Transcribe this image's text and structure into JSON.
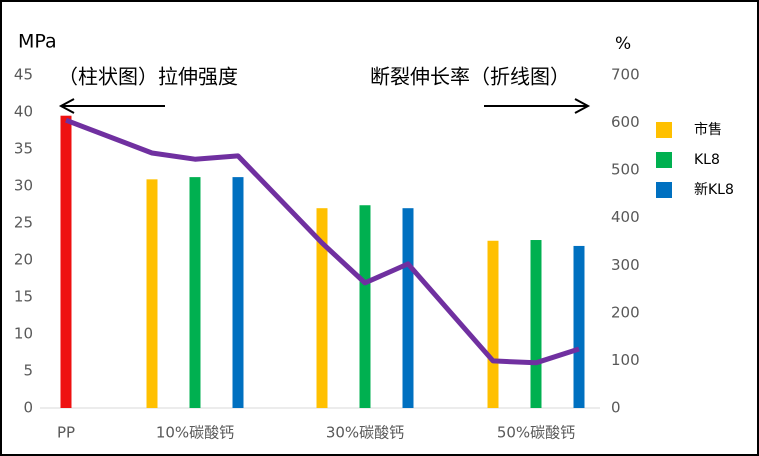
{
  "chart_data": {
    "type": "bar",
    "y_label": "MPa",
    "y2_label": "%",
    "annotations": [
      "（柱状图）拉伸强度",
      "断裂伸长率（折线图）"
    ],
    "categories": [
      "PP",
      "10%碳酸钙",
      "30%碳酸钙",
      "50%碳酸钙"
    ],
    "series": [
      {
        "color": "#ee1111",
        "values": [
          39.5,
          null,
          null,
          null
        ]
      },
      {
        "name": "市售",
        "color": "#ffc000",
        "values": [
          null,
          30.9,
          27.0,
          22.6
        ]
      },
      {
        "name": "KL8",
        "color": "#00b050",
        "values": [
          null,
          31.2,
          27.4,
          22.7
        ]
      },
      {
        "name": "新KL8",
        "color": "#0070c0",
        "values": [
          null,
          31.2,
          27.0,
          21.9
        ]
      }
    ],
    "line": {
      "color": "#7030a0",
      "axis": "y2",
      "values": [
        605,
        536,
        523,
        530,
        347,
        263,
        303,
        99,
        95,
        124
      ]
    },
    "ylim": [
      0,
      45
    ],
    "yticks": [
      0,
      5,
      10,
      15,
      20,
      25,
      30,
      35,
      40,
      45
    ],
    "y2lim": [
      0,
      700
    ],
    "y2ticks": [
      0,
      100,
      200,
      300,
      400,
      500,
      600,
      700
    ],
    "grid": false
  }
}
